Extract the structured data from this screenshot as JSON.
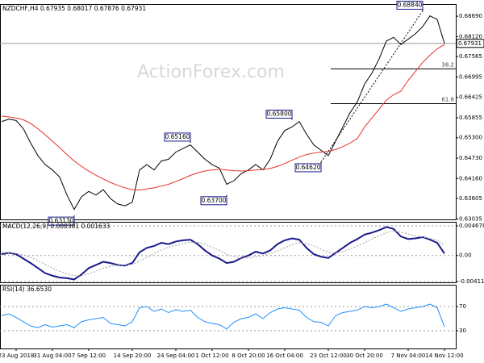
{
  "chart_data": [
    {
      "type": "line",
      "title": "NZDCHF,H4  0.67935 0.68017 0.67876 0.67931",
      "watermark": "ActionForex.com",
      "ylim": [
        0.6302,
        0.6903
      ],
      "yticks": [
        {
          "value": 0.6869,
          "label": "0.68690"
        },
        {
          "value": 0.6812,
          "label": "0.68120"
        },
        0.67565,
        0.66995,
        0.66425,
        0.65855,
        {
          "value": 0.653,
          "label": "0.65300"
        },
        {
          "value": 0.6473,
          "label": "0.64730"
        },
        {
          "value": 0.6416,
          "label": "0.64160"
        },
        0.63605,
        0.63035
      ],
      "last_price": 0.67931,
      "series": [
        {
          "color": "#000000",
          "values": [
            0.6575,
            0.6582,
            0.6578,
            0.6555,
            0.6515,
            0.648,
            0.6455,
            0.644,
            0.642,
            0.637,
            0.633,
            0.6365,
            0.638,
            0.637,
            0.6385,
            0.636,
            0.6345,
            0.634,
            0.635,
            0.644,
            0.6455,
            0.644,
            0.6465,
            0.647,
            0.649,
            0.65,
            0.651,
            0.649,
            0.647,
            0.6455,
            0.6445,
            0.64,
            0.641,
            0.643,
            0.644,
            0.6455,
            0.644,
            0.647,
            0.652,
            0.655,
            0.656,
            0.6575,
            0.654,
            0.651,
            0.6495,
            0.648,
            0.652,
            0.656,
            0.66,
            0.663,
            0.668,
            0.671,
            0.675,
            0.68,
            0.681,
            0.679,
            0.6805,
            0.682,
            0.684,
            0.687,
            0.686,
            0.6793
          ]
        },
        {
          "color": "#e8302a",
          "values": [
            0.659,
            0.6588,
            0.6585,
            0.658,
            0.657,
            0.6555,
            0.6538,
            0.652,
            0.6502,
            0.6483,
            0.6465,
            0.645,
            0.6437,
            0.6425,
            0.6415,
            0.6405,
            0.6397,
            0.639,
            0.6385,
            0.6384,
            0.6387,
            0.639,
            0.6395,
            0.64,
            0.6408,
            0.6416,
            0.6425,
            0.6432,
            0.6437,
            0.644,
            0.6442,
            0.644,
            0.6438,
            0.6437,
            0.6438,
            0.644,
            0.6441,
            0.6444,
            0.645,
            0.6458,
            0.6467,
            0.6476,
            0.6483,
            0.6487,
            0.649,
            0.6492,
            0.6497,
            0.6505,
            0.6515,
            0.6528,
            0.656,
            0.6585,
            0.661,
            0.6635,
            0.665,
            0.666,
            0.669,
            0.6715,
            0.674,
            0.676,
            0.6778,
            0.679
          ]
        }
      ],
      "annotations": [
        {
          "label": "0.68840",
          "value": 0.6884,
          "at": 58
        },
        {
          "label": "0.65800",
          "value": 0.658,
          "at": 40
        },
        {
          "label": "0.65160",
          "value": 0.6516,
          "at": 26
        },
        {
          "label": "0.63700",
          "value": 0.637,
          "at": 31
        },
        {
          "label": "0.64620",
          "value": 0.6462,
          "at": 44
        },
        {
          "label": "0.63130",
          "value": 0.6313,
          "at": 10
        }
      ],
      "levels": [
        {
          "label": "38.2",
          "value": 0.6722
        },
        {
          "label": "61.8",
          "value": 0.6625
        }
      ]
    },
    {
      "type": "line",
      "title": "MACD(12,26,9) 0.000301 0.001633",
      "ylim": [
        -0.00425,
        0.00532
      ],
      "yticks": [
        0.004678,
        {
          "value": 0,
          "label": "0.00"
        },
        -0.004118
      ],
      "series": [
        {
          "color": "#1a1a8c",
          "values": [
            0.0002,
            0.0004,
            0.0002,
            -0.0005,
            -0.0012,
            -0.002,
            -0.0028,
            -0.0032,
            -0.0035,
            -0.0036,
            -0.0038,
            -0.003,
            -0.002,
            -0.0015,
            -0.001,
            -0.0012,
            -0.0015,
            -0.0016,
            -0.0012,
            0.0005,
            0.0012,
            0.0015,
            0.002,
            0.0018,
            0.0022,
            0.0024,
            0.0025,
            0.0018,
            0.0008,
            0,
            -0.0005,
            -0.0012,
            -0.001,
            -0.0004,
            0,
            0.0006,
            0.0003,
            0.0008,
            0.0018,
            0.0024,
            0.0027,
            0.0025,
            0.0012,
            0.0002,
            -0.0002,
            -0.0004,
            0.0004,
            0.0012,
            0.002,
            0.0026,
            0.0033,
            0.0036,
            0.004,
            0.0045,
            0.0042,
            0.003,
            0.0026,
            0.0027,
            0.0029,
            0.0025,
            0.002,
            0.0003
          ]
        },
        {
          "color": "#a0a0a0",
          "dotted": true,
          "values": [
            0.0005,
            0.0004,
            0.0003,
            0.0001,
            -0.0003,
            -0.0008,
            -0.0014,
            -0.002,
            -0.0025,
            -0.0029,
            -0.0032,
            -0.0032,
            -0.0029,
            -0.0025,
            -0.002,
            -0.0017,
            -0.0015,
            -0.0015,
            -0.0014,
            -0.0009,
            -0.0003,
            0.0003,
            0.0009,
            0.0013,
            0.0016,
            0.0019,
            0.0021,
            0.0021,
            0.0018,
            0.0013,
            0.0008,
            0.0002,
            -0.0002,
            -0.0004,
            -0.0004,
            -0.0002,
            0,
            0.0003,
            0.0007,
            0.0012,
            0.0017,
            0.002,
            0.0019,
            0.0015,
            0.001,
            0.0005,
            0.0004,
            0.0006,
            0.001,
            0.0015,
            0.002,
            0.0026,
            0.0031,
            0.0036,
            0.0039,
            0.0037,
            0.0034,
            0.0031,
            0.0029,
            0.0027,
            0.0024,
            0.0016
          ]
        }
      ]
    },
    {
      "type": "line",
      "title": "RSI(14) 36.6530",
      "ylim": [
        0.7,
        106
      ],
      "yticks": [
        70,
        30
      ],
      "categories": [
        null,
        null,
        "23 Aug 2018",
        null,
        null,
        null,
        null,
        "31 Aug 04:00",
        null,
        null,
        null,
        null,
        "7 Sep 12:00",
        null,
        null,
        null,
        null,
        null,
        "14 Sep 20:00",
        null,
        null,
        null,
        null,
        null,
        "24 Sep 04:00",
        null,
        null,
        null,
        null,
        "1 Oct 12:00",
        null,
        null,
        null,
        null,
        "8 Oct 20:00",
        null,
        null,
        null,
        null,
        "16 Oct 04:00",
        null,
        null,
        null,
        null,
        null,
        "23 Oct 12:00",
        null,
        null,
        null,
        null,
        "30 Oct 20:00",
        null,
        null,
        null,
        null,
        null,
        "7 Nov 04:00",
        null,
        null,
        null,
        null,
        "14 Nov 12:00"
      ],
      "series": [
        {
          "color": "#1e90ff",
          "values": [
            55,
            58,
            52,
            45,
            38,
            35,
            40,
            36,
            38,
            40,
            35,
            45,
            48,
            50,
            52,
            42,
            40,
            38,
            45,
            68,
            70,
            62,
            66,
            60,
            65,
            62,
            64,
            52,
            45,
            42,
            40,
            33,
            44,
            50,
            52,
            58,
            50,
            60,
            66,
            68,
            66,
            64,
            52,
            45,
            44,
            38,
            55,
            60,
            62,
            64,
            70,
            68,
            70,
            74,
            68,
            62,
            66,
            68,
            70,
            74,
            68,
            36.653
          ]
        }
      ]
    }
  ]
}
